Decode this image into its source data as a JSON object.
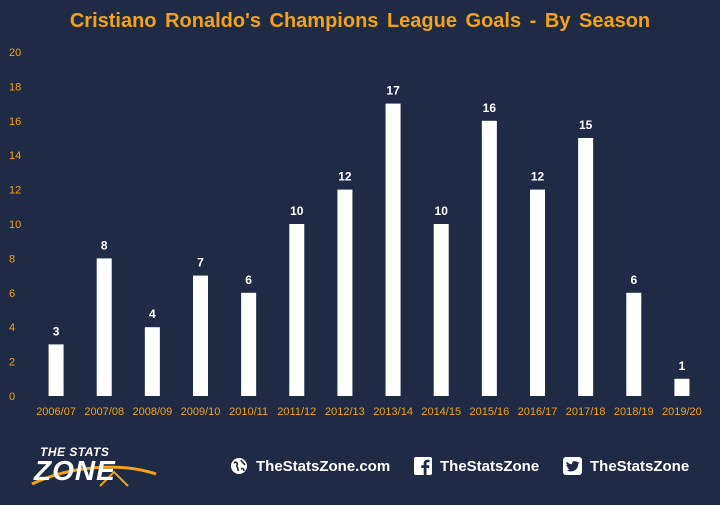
{
  "chart_data": {
    "type": "bar",
    "title": "Cristiano Ronaldo's Champions League Goals - By Season",
    "categories": [
      "2006/07",
      "2007/08",
      "2008/09",
      "2009/10",
      "2010/11",
      "2011/12",
      "2012/13",
      "2013/14",
      "2014/15",
      "2015/16",
      "2016/17",
      "2017/18",
      "2018/19",
      "2019/20"
    ],
    "values": [
      3,
      8,
      4,
      7,
      6,
      10,
      12,
      17,
      10,
      16,
      12,
      15,
      6,
      1
    ],
    "ylim": [
      0,
      20
    ],
    "yticks": [
      0,
      2,
      4,
      6,
      8,
      10,
      12,
      14,
      16,
      18,
      20
    ],
    "data_labels": true,
    "grid": false,
    "colors": {
      "background": "#1f2b45",
      "bar": "#ffffff",
      "accent": "#f3a21b"
    }
  },
  "footer": {
    "logo": {
      "line1": "THE STATS",
      "line2": "ZONE"
    },
    "website": {
      "icon": "globe-icon",
      "text": "TheStatsZone.com"
    },
    "facebook": {
      "icon": "facebook-icon",
      "text": "TheStatsZone"
    },
    "twitter": {
      "icon": "twitter-icon",
      "text": "TheStatsZone"
    }
  }
}
